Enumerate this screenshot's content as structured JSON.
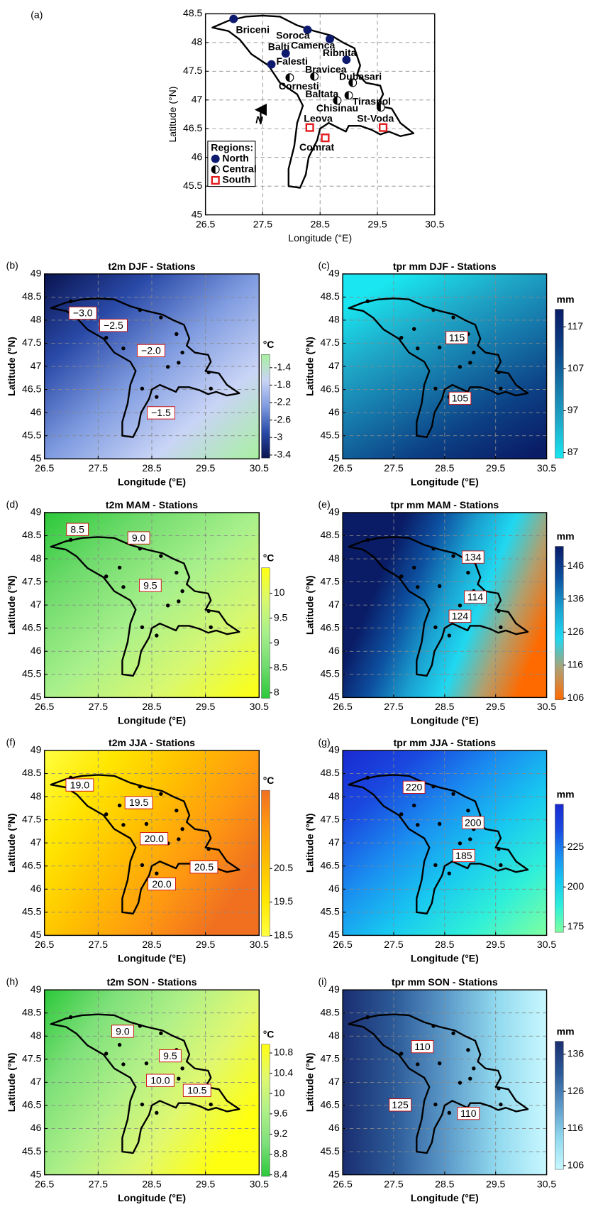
{
  "axis_labels": {
    "x": "Longitude (°E)",
    "y": "Latitude (°N)"
  },
  "map": {
    "label": "(a)",
    "xlim": [
      26.5,
      30.5
    ],
    "ylim": [
      45,
      48.5
    ],
    "xticks": [
      26.5,
      27.5,
      28.5,
      29.5,
      30.5
    ],
    "yticks": [
      45,
      45.5,
      46,
      46.5,
      47,
      47.5,
      48,
      48.5
    ],
    "grid": true,
    "north": "N",
    "legend": {
      "title": "Regions:",
      "regions": [
        {
          "name": "North",
          "color": "#0d1a6e"
        },
        {
          "name": "Central",
          "color": "#000000"
        },
        {
          "name": "South",
          "color": "#e31a1c"
        }
      ]
    },
    "stations": [
      {
        "name": "Briceni",
        "region": "North",
        "lon": 26.99,
        "lat": 48.41
      },
      {
        "name": "Soroca",
        "region": "North",
        "lon": 28.28,
        "lat": 48.22
      },
      {
        "name": "Camenca",
        "region": "North",
        "lon": 28.67,
        "lat": 48.06
      },
      {
        "name": "Ribnita",
        "region": "North",
        "lon": 28.96,
        "lat": 47.7
      },
      {
        "name": "Balti",
        "region": "North",
        "lon": 27.9,
        "lat": 47.81
      },
      {
        "name": "Falesti",
        "region": "North",
        "lon": 27.65,
        "lat": 47.62
      },
      {
        "name": "Cornesti",
        "region": "Central",
        "lon": 27.97,
        "lat": 47.39
      },
      {
        "name": "Bravicea",
        "region": "Central",
        "lon": 28.4,
        "lat": 47.41
      },
      {
        "name": "Dubasari",
        "region": "Central",
        "lon": 29.07,
        "lat": 47.3
      },
      {
        "name": "Baltata",
        "region": "Central",
        "lon": 29.0,
        "lat": 47.08
      },
      {
        "name": "Chisinau",
        "region": "Central",
        "lon": 28.8,
        "lat": 46.99
      },
      {
        "name": "Tiraspol",
        "region": "Central",
        "lon": 29.56,
        "lat": 46.87
      },
      {
        "name": "Leova",
        "region": "South",
        "lon": 28.32,
        "lat": 46.52
      },
      {
        "name": "Comrat",
        "region": "South",
        "lon": 28.59,
        "lat": 46.34
      },
      {
        "name": "St-Voda",
        "region": "South",
        "lon": 29.6,
        "lat": 46.52
      }
    ]
  },
  "panel_axes": {
    "xlim": [
      26.5,
      30.5
    ],
    "ylim": [
      45,
      49
    ],
    "xticks": [
      26.5,
      27.5,
      28.5,
      29.5,
      30.5
    ],
    "yticks": [
      45,
      45.5,
      46,
      46.5,
      47,
      47.5,
      48,
      48.5,
      49
    ],
    "grid": true
  },
  "panels": [
    {
      "label": "(b)",
      "title": "t2m DJF - Stations",
      "unit": "°C",
      "cbar_lim": [
        -3.47,
        -1.1
      ],
      "cbar_ticks": [
        -1.4,
        -1.8,
        -2.2,
        -2.6,
        -3,
        -3.4
      ],
      "colors": [
        "#0a1450",
        "#2a4aa8",
        "#7f9be0",
        "#c9d4f6",
        "#a8f0a0"
      ],
      "contours": {
        "values": [
          -3,
          -2.5,
          -2,
          -1.5
        ],
        "value_labels": [
          "−3.0",
          "−2.5",
          "−2.0",
          "−1.5"
        ]
      }
    },
    {
      "label": "(c)",
      "title": "tpr mm DJF - Stations",
      "unit": "mm",
      "cbar_lim": [
        85.7,
        121.2
      ],
      "cbar_ticks": [
        117,
        107,
        97,
        87
      ],
      "colors": [
        "#19e6f0",
        "#1fa8c8",
        "#1574a8",
        "#0c3f84",
        "#0a1c66"
      ],
      "contours": {
        "values": [
          115,
          105
        ]
      }
    },
    {
      "label": "(d)",
      "title": "t2m MAM - Stations",
      "unit": "°C",
      "cbar_lim": [
        7.89,
        10.51
      ],
      "cbar_ticks": [
        10,
        9.5,
        9,
        8.5,
        8
      ],
      "colors": [
        "#2cc83a",
        "#72dc6e",
        "#a8f08c",
        "#d8f870",
        "#ffff10"
      ],
      "contours": {
        "values": [
          8.5,
          9,
          9.5
        ],
        "value_labels": [
          "8.5",
          "9.0",
          "9.5"
        ]
      }
    },
    {
      "label": "(e)",
      "title": "tpr mm MAM - Stations",
      "unit": "mm",
      "cbar_lim": [
        105.5,
        152
      ],
      "cbar_ticks": [
        146,
        136,
        126,
        116,
        106
      ],
      "colors": [
        "#ff6a00",
        "#b0a070",
        "#20d8f0",
        "#1aa0d0",
        "#0d50a0",
        "#0a1c66"
      ],
      "contours": {
        "values": [
          134,
          114,
          124
        ]
      }
    },
    {
      "label": "(f)",
      "title": "t2m JJA - Stations",
      "unit": "°C",
      "cbar_lim": [
        18.48,
        22.84
      ],
      "cbar_ticks": [
        20.5,
        19.5,
        18.5
      ],
      "colors": [
        "#ffff40",
        "#ffe600",
        "#ffc000",
        "#ff9a10",
        "#f07020"
      ],
      "contours": {
        "values": [
          19,
          19.5,
          20,
          20.5,
          20
        ],
        "value_labels": [
          "19.0",
          "19.5",
          "20.0",
          "20.5",
          "20.0"
        ]
      }
    },
    {
      "label": "(g)",
      "title": "tpr mm JJA - Stations",
      "unit": "mm",
      "cbar_lim": [
        171.6,
        251.9
      ],
      "cbar_ticks": [
        225,
        200,
        175
      ],
      "colors": [
        "#80ffa0",
        "#30f0d8",
        "#18c8f0",
        "#1a8ef0",
        "#1a4ae0",
        "#1a2ad0"
      ],
      "contours": {
        "values": [
          220,
          200,
          185
        ]
      }
    },
    {
      "label": "(h)",
      "title": "t2m SON - Stations",
      "unit": "°C",
      "cbar_lim": [
        8.37,
        10.97
      ],
      "cbar_ticks": [
        10.8,
        10.4,
        10,
        9.6,
        9.2,
        8.8,
        8.4
      ],
      "colors": [
        "#2cc83a",
        "#7ee07a",
        "#b0f088",
        "#e0f870",
        "#ffff10"
      ],
      "contours": {
        "values": [
          9,
          9.5,
          10,
          10.5
        ],
        "value_labels": [
          "9.0",
          "9.5",
          "10.0",
          "10.5"
        ]
      }
    },
    {
      "label": "(i)",
      "title": "tpr mm SON - Stations",
      "unit": "mm",
      "cbar_lim": [
        105,
        139.5
      ],
      "cbar_ticks": [
        136,
        126,
        116,
        106
      ],
      "colors": [
        "#c8f8ff",
        "#90d8ee",
        "#5a98c8",
        "#2c5a98",
        "#1a2e70"
      ],
      "contours": {
        "values": [
          110,
          125,
          110
        ]
      }
    }
  ]
}
